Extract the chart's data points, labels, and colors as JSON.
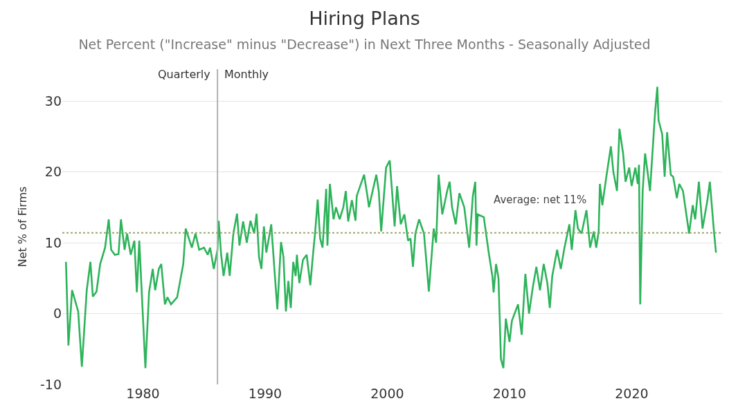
{
  "chart_data": {
    "type": "line",
    "title": "Hiring Plans",
    "subtitle": "Net Percent (\"Increase\" minus \"Decrease\") in Next Three Months - Seasonally Adjusted",
    "ylabel": "Net % of Firms",
    "x": [
      1973.7,
      1973.9,
      1974.2,
      1974.7,
      1975.0,
      1975.4,
      1975.7,
      1975.9,
      1976.2,
      1976.5,
      1976.9,
      1977.2,
      1977.4,
      1977.7,
      1978.0,
      1978.2,
      1978.5,
      1978.7,
      1979.0,
      1979.3,
      1979.5,
      1979.7,
      1980.2,
      1980.5,
      1980.8,
      1981.0,
      1981.3,
      1981.5,
      1981.8,
      1982.0,
      1982.3,
      1982.8,
      1983.3,
      1983.5,
      1984.0,
      1984.3,
      1984.6,
      1985.0,
      1985.3,
      1985.5,
      1985.8,
      1986.1,
      1986.2,
      1986.4,
      1986.6,
      1986.9,
      1987.1,
      1987.4,
      1987.7,
      1987.9,
      1988.2,
      1988.5,
      1988.8,
      1989.1,
      1989.3,
      1989.5,
      1989.7,
      1989.9,
      1990.1,
      1990.5,
      1990.8,
      1991.0,
      1991.3,
      1991.5,
      1991.7,
      1991.9,
      1992.1,
      1992.3,
      1992.5,
      1992.6,
      1992.8,
      1993.1,
      1993.4,
      1993.7,
      1993.9,
      1994.1,
      1994.3,
      1994.5,
      1994.7,
      1995.0,
      1995.1,
      1995.3,
      1995.6,
      1995.8,
      1996.1,
      1996.4,
      1996.6,
      1996.8,
      1997.1,
      1997.4,
      1997.5,
      1998.1,
      1998.4,
      1998.5,
      1999.1,
      1999.3,
      1999.5,
      1999.9,
      2000.2,
      2000.4,
      2000.6,
      2000.8,
      2001.1,
      2001.4,
      2001.7,
      2001.9,
      2002.1,
      2002.3,
      2002.6,
      2003.0,
      2003.2,
      2003.4,
      2003.8,
      2004.0,
      2004.2,
      2004.5,
      2004.9,
      2005.1,
      2005.3,
      2005.6,
      2005.9,
      2006.3,
      2006.7,
      2007.0,
      2007.2,
      2007.3,
      2007.4,
      2007.9,
      2008.3,
      2008.6,
      2008.7,
      2008.9,
      2009.1,
      2009.3,
      2009.5,
      2009.7,
      2010.0,
      2010.2,
      2010.7,
      2011.0,
      2011.3,
      2011.6,
      2011.9,
      2012.2,
      2012.5,
      2012.8,
      2013.1,
      2013.3,
      2013.5,
      2013.9,
      2014.2,
      2014.5,
      2014.9,
      2015.1,
      2015.4,
      2015.6,
      2015.9,
      2016.3,
      2016.6,
      2016.9,
      2017.1,
      2017.3,
      2017.4,
      2017.6,
      2017.9,
      2018.3,
      2018.5,
      2018.8,
      2019.0,
      2019.3,
      2019.5,
      2019.8,
      2020.0,
      2020.3,
      2020.5,
      2020.6,
      2020.7,
      2020.9,
      2021.1,
      2021.3,
      2021.5,
      2021.7,
      2021.9,
      2022.1,
      2022.2,
      2022.5,
      2022.7,
      2022.9,
      2023.2,
      2023.4,
      2023.7,
      2023.9,
      2024.2,
      2024.7,
      2025.0,
      2025.2,
      2025.5,
      2025.8,
      2026.2,
      2026.4,
      2026.7,
      2026.9
    ],
    "series": [
      {
        "color": "#2db35a",
        "values": [
          7.3,
          -4.5,
          3.3,
          0.3,
          -7.5,
          3.3,
          7.3,
          2.4,
          3.1,
          7.0,
          9.3,
          13.3,
          9.0,
          8.3,
          8.4,
          13.3,
          9.0,
          11.3,
          8.3,
          10.3,
          3.0,
          10.3,
          -7.7,
          3.0,
          6.3,
          3.3,
          6.3,
          7.0,
          1.3,
          2.3,
          1.3,
          2.3,
          7.0,
          12.0,
          9.3,
          11.3,
          9.0,
          9.3,
          8.3,
          9.3,
          6.3,
          9.0,
          13.1,
          8.3,
          5.3,
          8.6,
          5.3,
          11.3,
          14.1,
          9.6,
          13.0,
          10.0,
          13.1,
          11.3,
          14.1,
          8.0,
          6.3,
          12.3,
          8.6,
          12.6,
          5.3,
          0.6,
          10.1,
          8.0,
          0.3,
          4.6,
          0.8,
          7.3,
          5.3,
          8.3,
          4.3,
          7.6,
          8.3,
          4.0,
          8.0,
          11.6,
          16.1,
          10.6,
          9.3,
          17.6,
          9.6,
          18.3,
          13.3,
          15.0,
          13.3,
          15.0,
          17.3,
          13.0,
          16.0,
          13.1,
          16.6,
          19.6,
          16.3,
          15.0,
          19.6,
          17.3,
          11.6,
          20.6,
          21.6,
          17.0,
          12.3,
          18.0,
          12.6,
          14.0,
          10.3,
          10.6,
          6.6,
          11.3,
          13.3,
          11.3,
          7.3,
          3.1,
          12.0,
          10.0,
          19.6,
          14.0,
          17.3,
          18.6,
          15.0,
          12.6,
          17.0,
          15.0,
          9.3,
          16.6,
          18.6,
          9.6,
          14.0,
          13.6,
          8.6,
          5.3,
          3.0,
          7.0,
          5.0,
          -6.4,
          -7.7,
          -0.7,
          -4.0,
          -1.0,
          1.3,
          -3.0,
          5.6,
          0.0,
          3.6,
          6.6,
          3.3,
          7.0,
          4.3,
          0.8,
          5.3,
          9.0,
          6.3,
          9.3,
          12.6,
          9.0,
          14.6,
          12.0,
          11.3,
          14.6,
          9.3,
          11.6,
          9.3,
          11.6,
          18.3,
          15.3,
          19.0,
          23.6,
          20.0,
          17.3,
          26.1,
          22.6,
          18.6,
          20.6,
          18.0,
          20.6,
          18.3,
          21.0,
          1.3,
          17.3,
          22.6,
          20.0,
          17.3,
          22.6,
          28.0,
          32.0,
          27.3,
          25.3,
          19.3,
          25.6,
          19.6,
          19.3,
          16.3,
          18.3,
          17.3,
          11.3,
          15.3,
          13.3,
          18.6,
          12.0,
          16.0,
          18.6,
          12.3,
          8.6
        ]
      }
    ],
    "xlim": [
      1973.4,
      2027.4
    ],
    "xticks": [
      1980,
      1990,
      2000,
      2010,
      2020
    ],
    "ylim": [
      -10,
      34.5
    ],
    "yticks": [
      -10,
      0,
      10,
      20,
      30
    ],
    "grid": "y",
    "marker": "none",
    "line_style": "solid",
    "ref_lines": [
      {
        "axis": "x",
        "value": 1986.1,
        "color": "#b0b0b0",
        "line_style": "solid"
      },
      {
        "axis": "y",
        "value": 11.4,
        "label": "Average: net 11%",
        "color": "#9aa56a",
        "line_style": "dotted"
      }
    ],
    "annotations": [
      {
        "text": "Quarterly",
        "x": 1986.1,
        "y": 33.8
      },
      {
        "text": "Monthly",
        "x": 1986.1,
        "y": 33.8
      }
    ]
  }
}
